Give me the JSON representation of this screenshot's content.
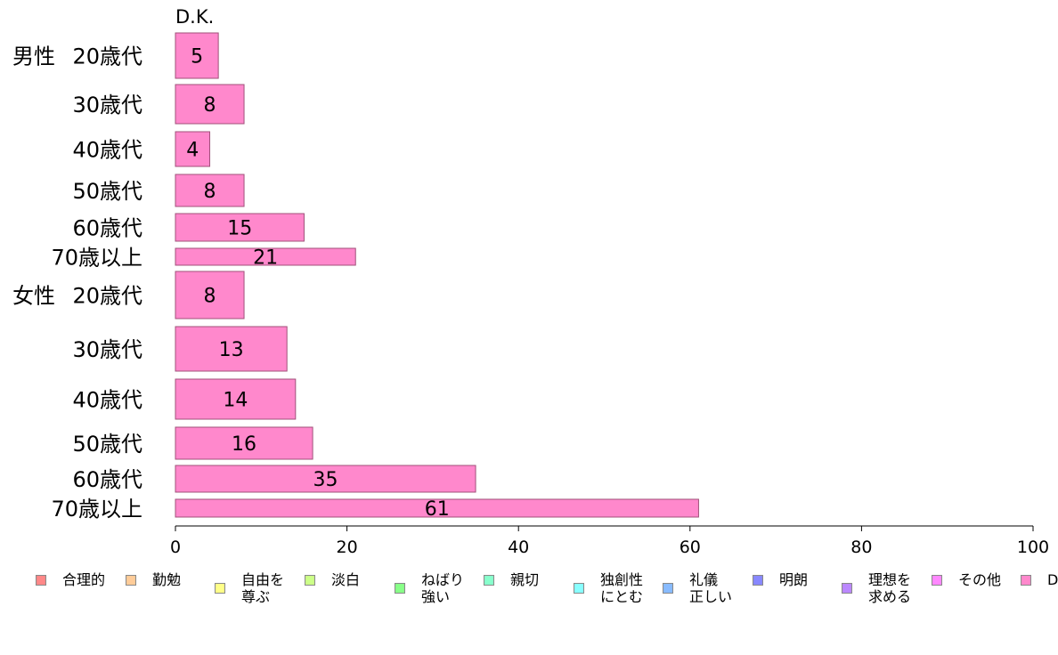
{
  "chart_data": {
    "type": "bar",
    "orientation": "horizontal",
    "title": "D.K.",
    "groups": [
      {
        "name": "男性",
        "categories": [
          "20歳代",
          "30歳代",
          "40歳代",
          "50歳代",
          "60歳代",
          "70歳以上"
        ],
        "values": [
          5,
          8,
          4,
          8,
          15,
          21
        ]
      },
      {
        "name": "女性",
        "categories": [
          "20歳代",
          "30歳代",
          "40歳代",
          "50歳代",
          "60歳代",
          "70歳以上"
        ],
        "values": [
          8,
          13,
          14,
          16,
          35,
          61
        ]
      }
    ],
    "xlim": [
      0,
      100
    ],
    "xticks": [
      "0",
      "20",
      "40",
      "60",
      "80",
      "100"
    ],
    "bar_color": "#ff88cc",
    "grid": false,
    "legend_position": "bottom",
    "legend": [
      {
        "label": "合理的",
        "color": "#ff8888"
      },
      {
        "label": "勤勉",
        "color": "#ffcc99"
      },
      {
        "label": "自由を\n尊ぶ",
        "color": "#ffff88"
      },
      {
        "label": "淡白",
        "color": "#ccff88"
      },
      {
        "label": "ねばり\n強い",
        "color": "#88ff88"
      },
      {
        "label": "親切",
        "color": "#88ffcc"
      },
      {
        "label": "独創性\nにとむ",
        "color": "#88ffff"
      },
      {
        "label": "礼儀\n正しい",
        "color": "#88bbff"
      },
      {
        "label": "明朗",
        "color": "#8888ff"
      },
      {
        "label": "理想を\n求める",
        "color": "#bb88ff"
      },
      {
        "label": "その他",
        "color": "#ff88ff"
      },
      {
        "label": "D",
        "color": "#ff88cc"
      }
    ]
  }
}
